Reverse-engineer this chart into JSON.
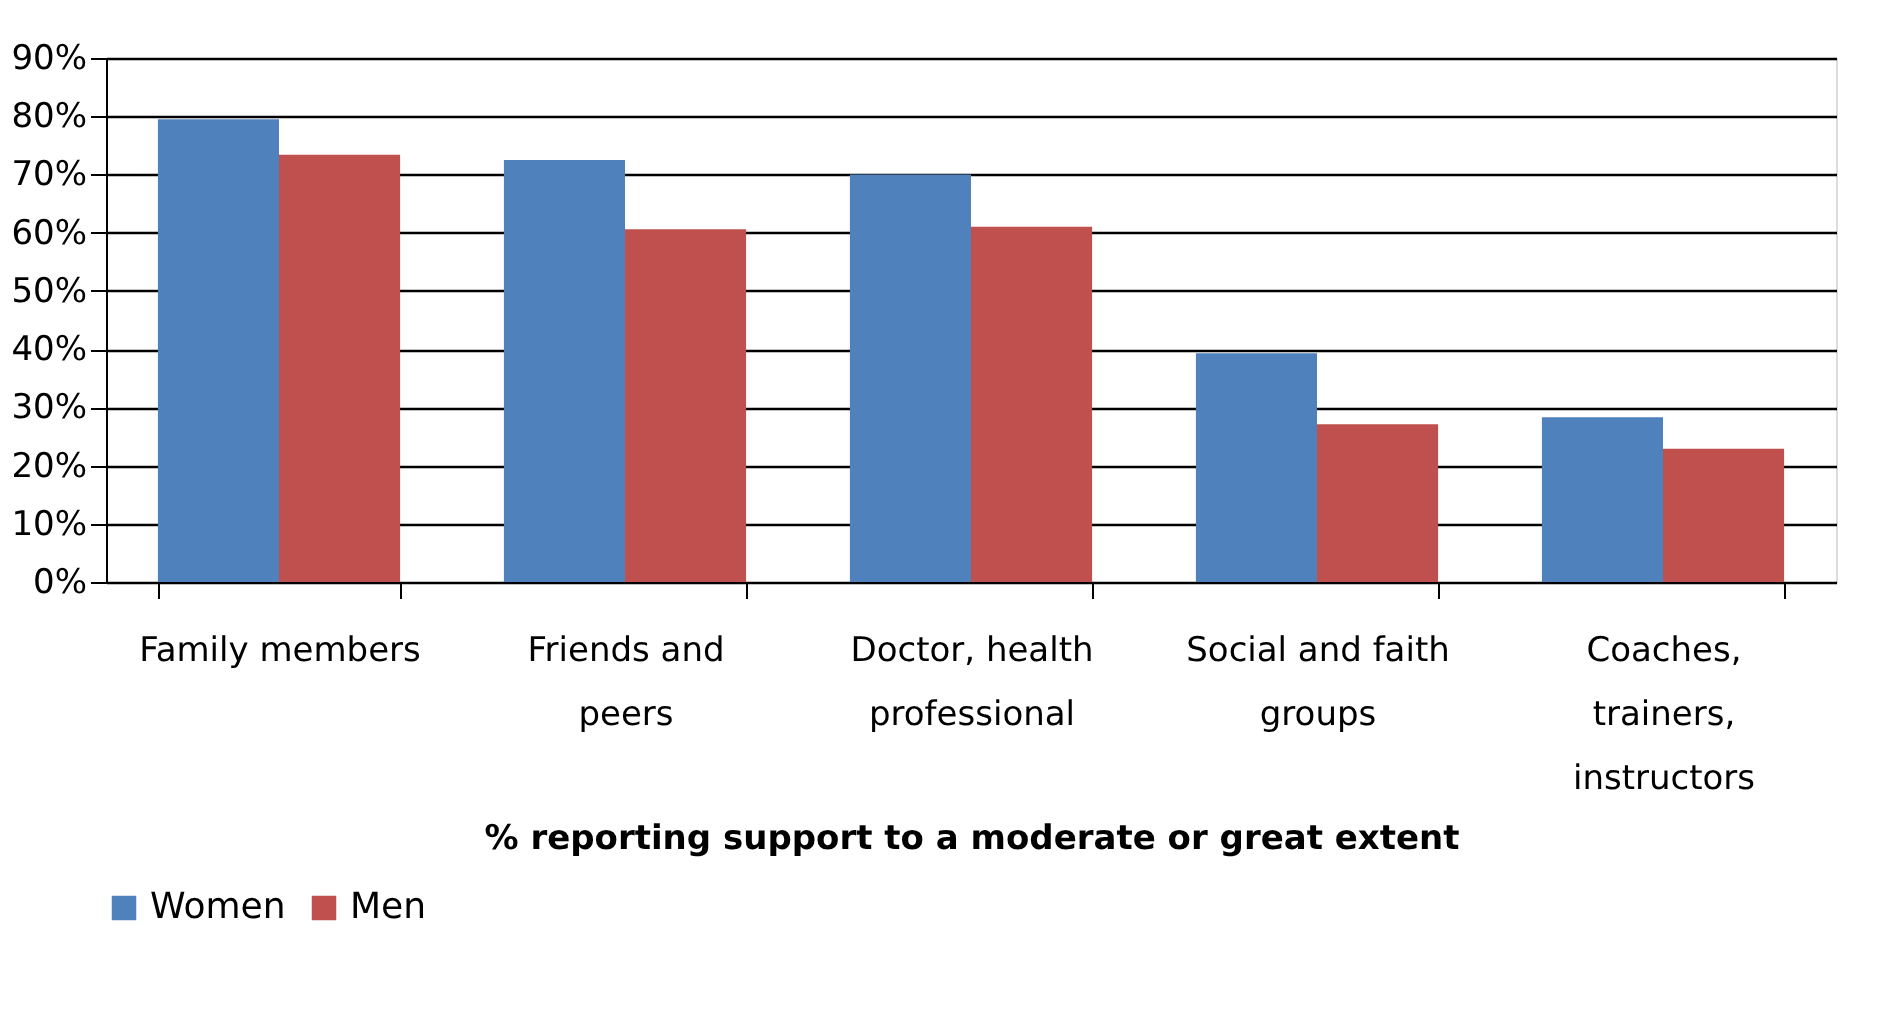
{
  "chart_data": {
    "type": "bar",
    "categories": [
      "Family members",
      "Friends and peers",
      "Doctor, health professional",
      "Social and faith groups",
      "Coaches, trainers, instructors"
    ],
    "xlabel": "% reporting support to a moderate or great extent",
    "series": [
      {
        "name": "Women",
        "color": "#4f81bd",
        "values": [
          79.5,
          72.5,
          70,
          39.3,
          28.3
        ]
      },
      {
        "name": "Men",
        "color": "#c0504d",
        "values": [
          73.4,
          60.6,
          61,
          27.1,
          22.9
        ]
      }
    ],
    "ylim": [
      0,
      90
    ],
    "yticks": [
      {
        "value": 0,
        "label": "0%"
      },
      {
        "value": 10,
        "label": "10%"
      },
      {
        "value": 20,
        "label": "20%"
      },
      {
        "value": 30,
        "label": "30%"
      },
      {
        "value": 40,
        "label": "40%"
      },
      {
        "value": 50,
        "label": "50%"
      },
      {
        "value": 60,
        "label": "60%"
      },
      {
        "value": 70,
        "label": "70%"
      },
      {
        "value": 80,
        "label": "80%"
      },
      {
        "value": 90,
        "label": "90%"
      }
    ],
    "grid": "y",
    "legend": "bottom"
  }
}
